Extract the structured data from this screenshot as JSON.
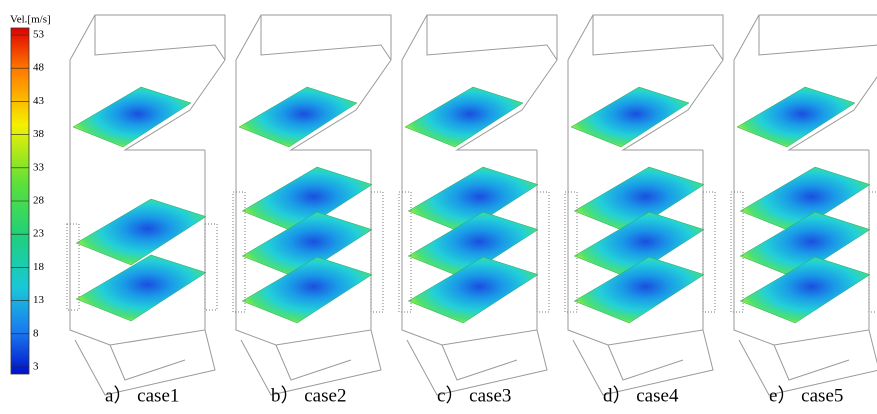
{
  "colorbar": {
    "title": "Vel.[m/s]",
    "ticks": [
      53,
      48,
      43,
      38,
      33,
      28,
      23,
      18,
      13,
      8,
      3
    ]
  },
  "panels": [
    {
      "caption": "a） case1"
    },
    {
      "caption": "b） case2"
    },
    {
      "caption": "c） case3"
    },
    {
      "caption": "d） case4"
    },
    {
      "caption": "e） case5"
    }
  ]
}
